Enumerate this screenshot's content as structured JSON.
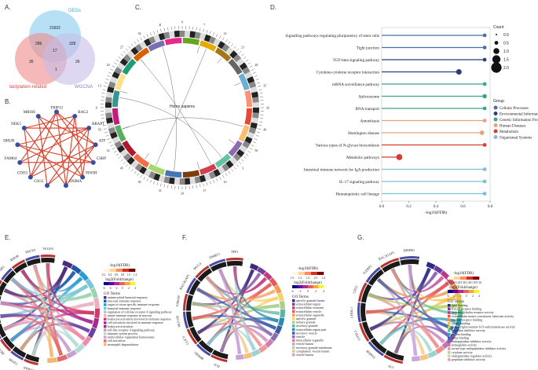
{
  "panels": {
    "A": "A.",
    "B": "B.",
    "C": "C.",
    "D": "D.",
    "E": "E.",
    "F": "F.",
    "G": "G."
  },
  "venn": {
    "sets": [
      "DEGs",
      "lactylation-related",
      "WGCNA"
    ],
    "colors": [
      "#5bb8e6",
      "#e05555",
      "#a99ad6"
    ],
    "counts": {
      "degs_only": "21602",
      "degs_lac": "286",
      "degs_wgcna": "328",
      "center": "17",
      "lac_only": "35",
      "lac_wgcna": "1",
      "wgcna_only": "26"
    }
  },
  "network": {
    "nodes": [
      "TRIP13",
      "BAG2",
      "BRAP1",
      "ATF",
      "CSBP",
      "PIWIH",
      "SNIMA",
      "CSGC",
      "CDO3",
      "FAM64",
      "DHUR",
      "NEK5",
      "MROH"
    ]
  },
  "circos": {
    "center_label": "Homo sapiens"
  },
  "lollipop": {
    "terms": [
      {
        "name": "Signalling pathways regulating pluripotency of stem cells",
        "fdr": 0.76,
        "count": 0.25,
        "group": "Cellular Processes"
      },
      {
        "name": "Tight junction",
        "fdr": 0.76,
        "count": 0.25,
        "group": "Cellular Processes"
      },
      {
        "name": "TGF-beta signaling pathway",
        "fdr": 0.76,
        "count": 0.25,
        "group": "Environmental Information Processing"
      },
      {
        "name": "Cytokine-cytokine receptor interaction",
        "fdr": 0.57,
        "count": 1.0,
        "group": "Environmental Information Processing"
      },
      {
        "name": "mRNA surveillance pathway",
        "fdr": 0.76,
        "count": 0.25,
        "group": "Genetic Information Processing"
      },
      {
        "name": "Spliceosome",
        "fdr": 0.76,
        "count": 0.5,
        "group": "Genetic Information Processing"
      },
      {
        "name": "RNA transport",
        "fdr": 0.76,
        "count": 0.25,
        "group": "Genetic Information Processing"
      },
      {
        "name": "Amoebiasis",
        "fdr": 0.76,
        "count": 0.25,
        "group": "Human Diseases"
      },
      {
        "name": "Huntington disease",
        "fdr": 0.74,
        "count": 0.6,
        "group": "Human Diseases"
      },
      {
        "name": "Various types of N-glycan biosynthesis",
        "fdr": 0.76,
        "count": 0.25,
        "group": "Metabolism"
      },
      {
        "name": "Metabolic pathways",
        "fdr": 0.13,
        "count": 1.25,
        "group": "Metabolism"
      },
      {
        "name": "Intestinal immune network for IgA production",
        "fdr": 0.76,
        "count": 0.25,
        "group": "Organismal Systems"
      },
      {
        "name": "IL-17 signaling pathway",
        "fdr": 0.76,
        "count": 0.25,
        "group": "Organismal Systems"
      },
      {
        "name": "Hematopoietic cell lineage",
        "fdr": 0.76,
        "count": 0.25,
        "group": "Organismal Systems"
      }
    ],
    "xlim": [
      0,
      0.8
    ],
    "xticks": [
      "0.0",
      "0.2",
      "0.4",
      "0.6",
      "0.8"
    ],
    "xlabel": "-log10(FDR)",
    "count_title": "Count",
    "count_levels": [
      "0.0",
      "0.5",
      "1.0",
      "1.5",
      "2.0"
    ],
    "group_title": "Group",
    "groups": [
      {
        "name": "Cellular Processes",
        "color": "#4a6fa5"
      },
      {
        "name": "Environmental Information Processing",
        "color": "#2b3f75"
      },
      {
        "name": "Genetic Information Processing",
        "color": "#3aa58c"
      },
      {
        "name": "Human Diseases",
        "color": "#e8a07c"
      },
      {
        "name": "Metabolism",
        "color": "#d63d2e"
      },
      {
        "name": "Organismal Systems",
        "color": "#7cc0d6"
      }
    ]
  },
  "chordE": {
    "scale_title": "-log10(FDR)",
    "scale_ticks": [
      "0.2",
      "0.4",
      "0.6",
      "0.8",
      "1.0",
      "1.2"
    ],
    "fc_title": "log2(Foldchange)",
    "fc_ticks": [
      "-6",
      "-4",
      "-2",
      "0",
      "2",
      "4"
    ],
    "terms_title": "GO Terms",
    "terms": [
      "antimicrobial humoral response",
      "mucosal immune response",
      "organ or tissue specific immune response",
      "humoral immune response",
      "regulation of toll-like receptor 4 signaling pathway",
      "innate immune response in mucosa",
      "leukocyte activation involved in immune response",
      "cell activation involved in immune response",
      "leukocyte activation",
      "toll-like receptor 4 signaling pathway",
      "immune system process",
      "multicellular organismal homeostasis",
      "cell activation",
      "neutrophil degranulation"
    ],
    "genes": [
      "S100A8",
      "CD300",
      "MUC5B",
      "DMBT1",
      "BAG2",
      "RAC3",
      "KISS1",
      "TOP2",
      "RHOB",
      "PDCD1",
      "VEGFA"
    ]
  },
  "chordF": {
    "scale_title": "-log10(FDR)",
    "scale_ticks": [
      "1.0",
      "1.2",
      "1.6",
      "2.0",
      "2.4"
    ],
    "fc_title": "log2(Foldchange)",
    "fc_ticks": [
      "-4",
      "-2",
      "0",
      "2",
      "4"
    ],
    "terms_title": "GO Terms",
    "terms": [
      "specific granule lumen",
      "extracellular region",
      "extracellular exosome",
      "extracellular vesicle",
      "extracellular organelle",
      "specific granule",
      "tertiary granule",
      "secretory granule",
      "extracellular region part",
      "secretory vesicle",
      "vesicle",
      "intracellular organelle",
      "vesicle lumen",
      "secretory granule membrane",
      "cytoplasmic vesicle lumen",
      "vesicle lumen"
    ],
    "genes": [
      "FLG",
      "BPIFB1",
      "CLIC3",
      "MUC5B",
      "S100A8",
      "RAC3GAP1",
      "MUC4",
      "DMBT1",
      "TFF1"
    ]
  },
  "chordG": {
    "scale_title": "-log10(FDR)",
    "scale_ticks": [
      "1.06",
      "1.10",
      "1.20",
      "1.30",
      "1.40",
      "1.50",
      "1.56"
    ],
    "fc_title": "log2(Foldchange)",
    "fc_ticks": [
      "-6",
      "-4",
      "-2",
      "0",
      "2",
      "4"
    ],
    "terms_title": "GO Terms",
    "terms": [
      "lipid binding",
      "RAGE receptor binding",
      "immunoglobulin receptor activity",
      "extracellular matrix constituent, lubricant activity",
      "nuclear receptor binding",
      "sialate binding",
      "N-acetylglucosamine 6-O-sulfotransferase activity",
      "peptidase inhibitor activity",
      "protein binding",
      "heme binding",
      "endopeptidase inhibitor activity",
      "hemoglobin activity",
      "serine-type endopeptidase inhibitor activity",
      "cytokine activity",
      "endopeptidase regulator activity",
      "peptidase inhibitor activity"
    ],
    "genes": [
      "LTF",
      "FAM3B",
      "LOXL1",
      "CHI3L1",
      "CD52",
      "IGFBP1",
      "RAC3GAP1",
      "BPIFB1"
    ]
  }
}
